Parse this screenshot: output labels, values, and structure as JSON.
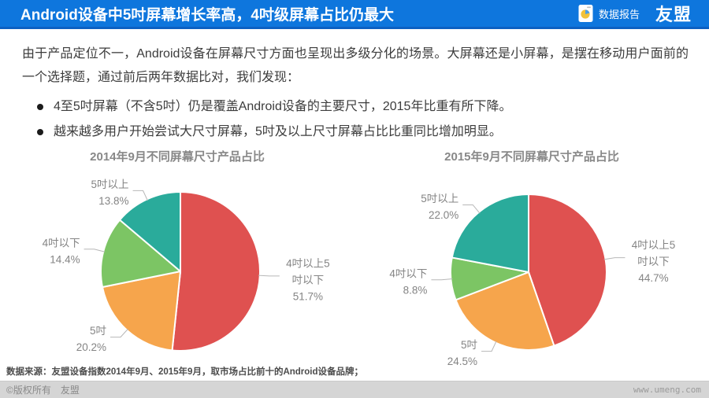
{
  "header": {
    "title": "Android设备中5吋屏幕增长率高，4吋级屏幕占比仍最大",
    "report_label": "数据报告",
    "logo_text": "友盟",
    "bg_color": "#0e76dd",
    "accent_line_color": "#0c60c2"
  },
  "intro": {
    "text": "由于产品定位不一，Android设备在屏幕尺寸方面也呈现出多级分化的场景。大屏幕还是小屏幕，是摆在移动用户面前的一个选择题，通过前后两年数据比对，我们发现："
  },
  "bullets": [
    {
      "text": "4至5吋屏幕（不含5吋）仍是覆盖Android设备的主要尺寸，2015年比重有所下降。"
    },
    {
      "text": "越来越多用户开始尝试大尺寸屏幕，5吋及以上尺寸屏幕占比比重同比增加明显。"
    }
  ],
  "chart_data": [
    {
      "type": "pie",
      "title": "2014年9月不同屏幕尺寸产品占比",
      "legend_position": "none",
      "slices": [
        {
          "label": "4吋以上5吋以下",
          "label_lines": [
            "4吋以上5",
            "吋以下"
          ],
          "pct": "51.7%",
          "value": 51.7,
          "color": "#df5150"
        },
        {
          "label": "5吋",
          "label_lines": [
            "5吋"
          ],
          "pct": "20.2%",
          "value": 20.2,
          "color": "#f6a54c"
        },
        {
          "label": "4吋以下",
          "label_lines": [
            "4吋以下"
          ],
          "pct": "14.4%",
          "value": 14.4,
          "color": "#7cc564"
        },
        {
          "label": "5吋以上",
          "label_lines": [
            "5吋以上"
          ],
          "pct": "13.8%",
          "value": 13.8,
          "color": "#2aab9b"
        }
      ]
    },
    {
      "type": "pie",
      "title": "2015年9月不同屏幕尺寸产品占比",
      "legend_position": "none",
      "slices": [
        {
          "label": "4吋以上5吋以下",
          "label_lines": [
            "4吋以上5",
            "吋以下"
          ],
          "pct": "44.7%",
          "value": 44.7,
          "color": "#df5150"
        },
        {
          "label": "5吋",
          "label_lines": [
            "5吋"
          ],
          "pct": "24.5%",
          "value": 24.5,
          "color": "#f6a54c"
        },
        {
          "label": "4吋以下",
          "label_lines": [
            "4吋以下"
          ],
          "pct": "8.8%",
          "value": 8.8,
          "color": "#7cc564"
        },
        {
          "label": "5吋以上",
          "label_lines": [
            "5吋以上"
          ],
          "pct": "22.0%",
          "value": 22.0,
          "color": "#2aab9b"
        }
      ]
    }
  ],
  "source_note": "数据来源：友盟设备指数2014年9月、2015年9月，取市场占比前十的Android设备品牌；",
  "footer": {
    "copyright": "©版权所有　友盟",
    "website": "www.umeng.com"
  }
}
